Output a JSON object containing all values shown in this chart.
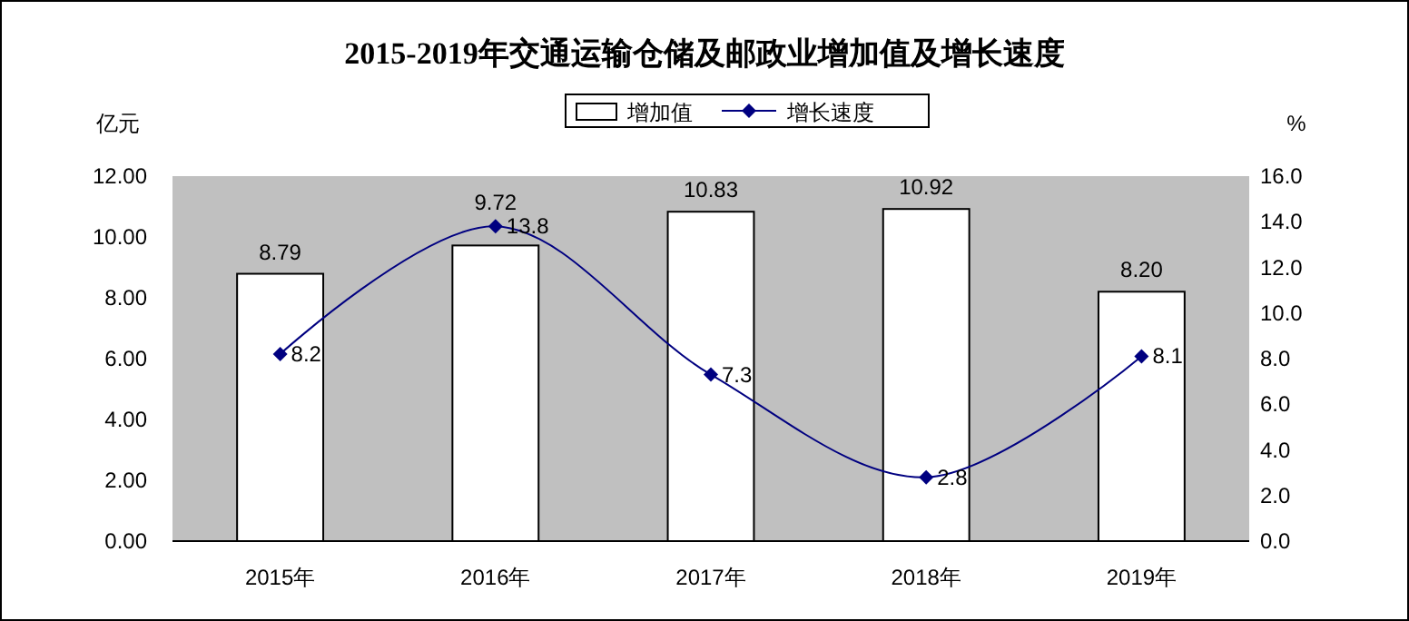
{
  "chart_data": {
    "type": "bar",
    "title": "2015-2019年交通运输仓储及邮政业增加值及增长速度",
    "categories": [
      "2015年",
      "2016年",
      "2017年",
      "2018年",
      "2019年"
    ],
    "series": [
      {
        "name": "增加值",
        "color": "#ffffff",
        "values": [
          8.79,
          9.72,
          10.83,
          10.92,
          8.2
        ],
        "value_labels": [
          "8.79",
          "9.72",
          "10.83",
          "10.92",
          "8.20"
        ]
      },
      {
        "name": "增长速度",
        "type": "line",
        "axis": "y2",
        "color": "#000080",
        "marker": "diamond",
        "values": [
          8.2,
          13.8,
          7.3,
          2.8,
          8.1
        ],
        "value_labels": [
          "8.2",
          "13.8",
          "7.3",
          "2.8",
          "8.1"
        ]
      }
    ],
    "ylabel": "亿元",
    "y2label": "%",
    "ylim": [
      0,
      12
    ],
    "yticks": [
      {
        "value": 0,
        "label": "0.00"
      },
      {
        "value": 2,
        "label": "2.00"
      },
      {
        "value": 4,
        "label": "4.00"
      },
      {
        "value": 6,
        "label": "6.00"
      },
      {
        "value": 8,
        "label": "8.00"
      },
      {
        "value": 10,
        "label": "10.00"
      },
      {
        "value": 12,
        "label": "12.00"
      }
    ],
    "y2lim": [
      0,
      16
    ],
    "y2ticks": [
      {
        "value": 0,
        "label": "0.0"
      },
      {
        "value": 2,
        "label": "2.0"
      },
      {
        "value": 4,
        "label": "4.0"
      },
      {
        "value": 6,
        "label": "6.0"
      },
      {
        "value": 8,
        "label": "8.0"
      },
      {
        "value": 10,
        "label": "10.0"
      },
      {
        "value": 12,
        "label": "12.0"
      },
      {
        "value": 14,
        "label": "14.0"
      },
      {
        "value": 16,
        "label": "16.0"
      }
    ],
    "legend": "top",
    "grid": false
  }
}
